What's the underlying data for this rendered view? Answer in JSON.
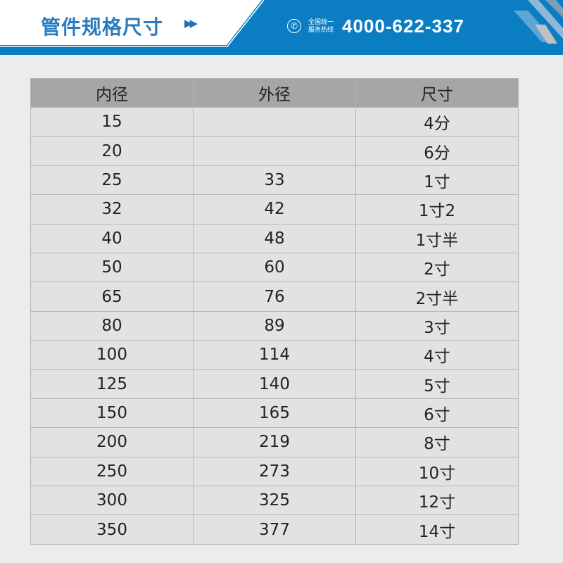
{
  "header": {
    "title": "管件规格尺寸",
    "arrow_icon": "double-chevron-right-icon",
    "hotline_label_line1": "全国统一",
    "hotline_label_line2": "服务热线",
    "hotline_number": "4000-622-337",
    "phone_icon": "phone-icon",
    "brand_color": "#0a7dc3"
  },
  "table": {
    "columns": [
      "内径",
      "外径",
      "尺寸"
    ],
    "rows": [
      [
        "15",
        "",
        "4分"
      ],
      [
        "20",
        "",
        "6分"
      ],
      [
        "25",
        "33",
        "1寸"
      ],
      [
        "32",
        "42",
        "1寸2"
      ],
      [
        "40",
        "48",
        "1寸半"
      ],
      [
        "50",
        "60",
        "2寸"
      ],
      [
        "65",
        "76",
        "2寸半"
      ],
      [
        "80",
        "89",
        "3寸"
      ],
      [
        "100",
        "114",
        "4寸"
      ],
      [
        "125",
        "140",
        "5寸"
      ],
      [
        "150",
        "165",
        "6寸"
      ],
      [
        "200",
        "219",
        "8寸"
      ],
      [
        "250",
        "273",
        "10寸"
      ],
      [
        "300",
        "325",
        "12寸"
      ],
      [
        "350",
        "377",
        "14寸"
      ]
    ]
  }
}
